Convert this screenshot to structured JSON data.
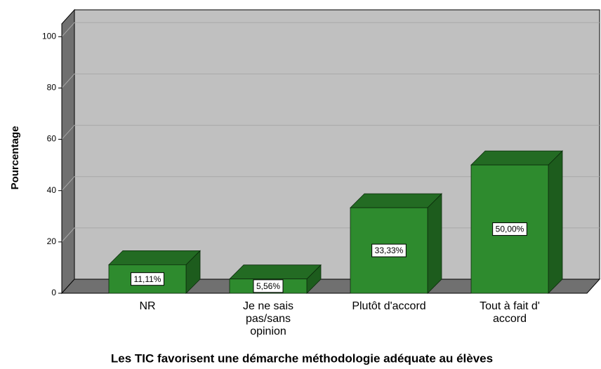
{
  "chart_data": {
    "type": "bar3d",
    "title": "Les TIC favorisent une démarche méthodologie adéquate au élèves",
    "y_label": "Pourcentage",
    "categories": [
      "NR",
      "Je ne sais pas/sans opinion",
      "Plutôt d'accord",
      "Tout à fait d' accord"
    ],
    "values": [
      11.11,
      5.56,
      33.33,
      50.0
    ],
    "value_labels": [
      "11,11%",
      "5,56%",
      "33,33%",
      "50,00%"
    ],
    "color": "#2e8b2e",
    "ylim": [
      0,
      105
    ],
    "yticks": [
      0,
      20,
      40,
      60,
      80,
      100
    ],
    "grid": true
  }
}
